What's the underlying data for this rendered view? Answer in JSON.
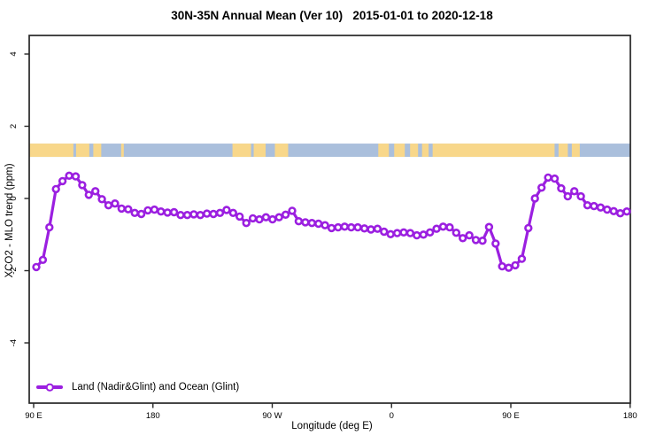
{
  "chart_data": {
    "type": "line",
    "title": "30N-35N Annual Mean (Ver 10)   2015-01-01 to 2020-12-18",
    "xlabel": "Longitude (deg E)",
    "ylabel": "XCO2 - MLO trend (ppm)",
    "ylim": [
      -5.3,
      4.7
    ],
    "x_axis_span_deg": 450,
    "grid": "off",
    "x_ticks": [
      {
        "label": "90 E",
        "deg": 0
      },
      {
        "label": "180",
        "deg": 90
      },
      {
        "label": "90 W",
        "deg": 180
      },
      {
        "label": "0",
        "deg": 270
      },
      {
        "label": "90 E",
        "deg": 360
      },
      {
        "label": "180",
        "deg": 450
      }
    ],
    "y_ticks": [
      {
        "label": "4",
        "value": 4
      },
      {
        "label": "2",
        "value": 2
      },
      {
        "label": "0",
        "value": 0
      },
      {
        "label": "-2",
        "value": -2
      },
      {
        "label": "-4",
        "value": -4
      }
    ],
    "legend": {
      "position": "bottom-left",
      "entries": [
        {
          "label": "Land (Nadir&Glint) and Ocean (Glint)",
          "color": "#9b1fe0",
          "marker": "open-circle"
        }
      ]
    },
    "series": [
      {
        "name": "Land (Nadir&Glint) and Ocean (Glint)",
        "lon_offset_start_deg": 2,
        "lon_step_deg": 4.95,
        "values": [
          -1.9,
          -1.7,
          -0.8,
          0.26,
          0.48,
          0.63,
          0.61,
          0.37,
          0.1,
          0.2,
          -0.02,
          -0.19,
          -0.14,
          -0.28,
          -0.3,
          -0.4,
          -0.43,
          -0.33,
          -0.31,
          -0.36,
          -0.39,
          -0.38,
          -0.46,
          -0.46,
          -0.44,
          -0.46,
          -0.42,
          -0.43,
          -0.4,
          -0.32,
          -0.4,
          -0.5,
          -0.68,
          -0.55,
          -0.58,
          -0.52,
          -0.58,
          -0.52,
          -0.45,
          -0.34,
          -0.63,
          -0.66,
          -0.68,
          -0.7,
          -0.74,
          -0.82,
          -0.8,
          -0.78,
          -0.8,
          -0.8,
          -0.83,
          -0.86,
          -0.84,
          -0.92,
          -0.99,
          -0.96,
          -0.94,
          -0.96,
          -1.02,
          -1.0,
          -0.94,
          -0.84,
          -0.78,
          -0.8,
          -0.95,
          -1.1,
          -1.02,
          -1.15,
          -1.17,
          -0.79,
          -1.25,
          -1.88,
          -1.92,
          -1.85,
          -1.67,
          -0.82,
          0.0,
          0.3,
          0.58,
          0.55,
          0.28,
          0.06,
          0.2,
          0.06,
          -0.19,
          -0.21,
          -0.25,
          -0.31,
          -0.35,
          -0.41,
          -0.36
        ]
      }
    ],
    "map_strip": {
      "description": "world land/ocean band along 30N-35N",
      "value_top": 1.52,
      "value_bottom": 1.152,
      "ocean_color": "#aabfdc",
      "land_color": "#f8d78a",
      "land_segments_deg": [
        [
          -3.4,
          30
        ],
        [
          32,
          42
        ],
        [
          45,
          51
        ],
        [
          66,
          68
        ],
        [
          150,
          164
        ],
        [
          166,
          175
        ],
        [
          182,
          192
        ],
        [
          260,
          268
        ],
        [
          272,
          280
        ],
        [
          284,
          290
        ],
        [
          293,
          298
        ],
        [
          301,
          393
        ],
        [
          396,
          403
        ],
        [
          406,
          412
        ]
      ]
    },
    "colors": {
      "series": "#9b1fe0",
      "marker_fill": "#ffffff",
      "axis": "#262626",
      "text": "#000000"
    }
  }
}
